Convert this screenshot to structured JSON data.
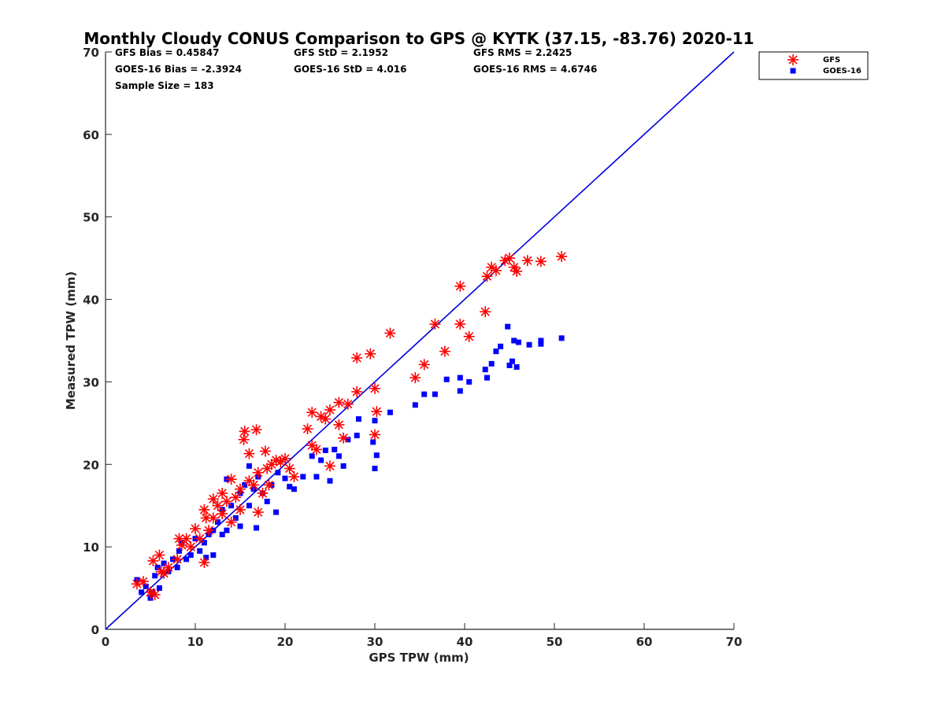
{
  "chart_data": {
    "type": "scatter",
    "title": "Monthly Cloudy CONUS Comparison to GPS @ KYTK (37.15, -83.76) 2020-11",
    "xlabel": "GPS TPW (mm)",
    "ylabel": "Measured TPW (mm)",
    "xlim": [
      0,
      70
    ],
    "ylim": [
      0,
      70
    ],
    "xticks": [
      "0",
      "10",
      "20",
      "30",
      "40",
      "50",
      "60",
      "70"
    ],
    "yticks": [
      "0",
      "10",
      "20",
      "30",
      "40",
      "50",
      "60",
      "70"
    ],
    "reference_line": {
      "x": [
        0,
        70
      ],
      "y": [
        0,
        70
      ],
      "color": "#0000dd"
    },
    "stats": {
      "gfs_bias": "GFS Bias = 0.45847",
      "gfs_std": "GFS StD = 2.1952",
      "gfs_rms": "GFS RMS = 2.2425",
      "goes_bias": "GOES-16 Bias = -2.3924",
      "goes_std": "GOES-16 StD = 4.016",
      "goes_rms": "GOES-16 RMS = 4.6746",
      "sample_size": "Sample Size = 183"
    },
    "legend": {
      "position": "top-right, outside axes",
      "entries": [
        "GFS",
        "GOES-16"
      ]
    },
    "series": [
      {
        "name": "GFS",
        "marker": "asterisk",
        "color": "#ff0000",
        "points": [
          [
            3.5,
            5.5
          ],
          [
            4.2,
            5.8
          ],
          [
            5.0,
            4.5
          ],
          [
            5.5,
            4.2
          ],
          [
            5.3,
            8.3
          ],
          [
            6.0,
            9.0
          ],
          [
            6.2,
            7.0
          ],
          [
            6.5,
            6.8
          ],
          [
            7.0,
            7.5
          ],
          [
            8.0,
            8.5
          ],
          [
            8.2,
            11.0
          ],
          [
            8.5,
            10.2
          ],
          [
            9.0,
            11.0
          ],
          [
            9.5,
            10.0
          ],
          [
            10.0,
            12.2
          ],
          [
            10.5,
            11.0
          ],
          [
            11.0,
            8.1
          ],
          [
            11.2,
            13.5
          ],
          [
            11.0,
            14.5
          ],
          [
            11.5,
            12.0
          ],
          [
            12.0,
            15.8
          ],
          [
            12.0,
            13.5
          ],
          [
            12.5,
            15.0
          ],
          [
            13.0,
            16.5
          ],
          [
            13.0,
            14.0
          ],
          [
            13.5,
            15.5
          ],
          [
            14.0,
            13.0
          ],
          [
            14.0,
            18.2
          ],
          [
            14.5,
            16.0
          ],
          [
            15.0,
            17.0
          ],
          [
            15.0,
            14.5
          ],
          [
            15.5,
            24.0
          ],
          [
            15.4,
            23.0
          ],
          [
            16.0,
            21.3
          ],
          [
            16.0,
            18.0
          ],
          [
            16.5,
            17.5
          ],
          [
            16.8,
            24.2
          ],
          [
            17.0,
            19.0
          ],
          [
            17.0,
            14.2
          ],
          [
            17.5,
            16.5
          ],
          [
            17.8,
            21.6
          ],
          [
            18.0,
            19.5
          ],
          [
            18.2,
            17.5
          ],
          [
            18.5,
            20.0
          ],
          [
            19.0,
            20.5
          ],
          [
            19.5,
            20.3
          ],
          [
            20.0,
            20.7
          ],
          [
            20.5,
            19.5
          ],
          [
            21.0,
            18.5
          ],
          [
            22.5,
            24.3
          ],
          [
            23.0,
            26.3
          ],
          [
            23.0,
            22.3
          ],
          [
            23.5,
            21.8
          ],
          [
            24.0,
            25.8
          ],
          [
            24.5,
            25.5
          ],
          [
            25.0,
            19.8
          ],
          [
            25.0,
            26.6
          ],
          [
            26.0,
            27.5
          ],
          [
            26.0,
            24.8
          ],
          [
            26.5,
            23.2
          ],
          [
            27.0,
            27.3
          ],
          [
            28.0,
            32.9
          ],
          [
            28.0,
            28.8
          ],
          [
            29.5,
            33.4
          ],
          [
            30.0,
            29.2
          ],
          [
            30.0,
            23.6
          ],
          [
            30.2,
            26.4
          ],
          [
            31.7,
            35.9
          ],
          [
            34.5,
            30.5
          ],
          [
            35.5,
            32.1
          ],
          [
            36.7,
            37.0
          ],
          [
            37.8,
            33.7
          ],
          [
            39.5,
            41.6
          ],
          [
            39.5,
            37.0
          ],
          [
            40.5,
            35.5
          ],
          [
            42.3,
            38.5
          ],
          [
            42.5,
            42.8
          ],
          [
            43.0,
            43.9
          ],
          [
            43.5,
            43.5
          ],
          [
            44.5,
            44.7
          ],
          [
            45.0,
            45.0
          ],
          [
            45.5,
            43.9
          ],
          [
            45.8,
            43.4
          ],
          [
            47.0,
            44.7
          ],
          [
            48.5,
            44.6
          ],
          [
            50.8,
            45.2
          ]
        ]
      },
      {
        "name": "GOES-16",
        "marker": "square",
        "color": "#0000ff",
        "points": [
          [
            3.5,
            6.0
          ],
          [
            4.0,
            4.5
          ],
          [
            4.5,
            5.2
          ],
          [
            5.0,
            3.8
          ],
          [
            5.2,
            4.5
          ],
          [
            5.5,
            6.5
          ],
          [
            5.8,
            7.5
          ],
          [
            6.0,
            5.0
          ],
          [
            6.5,
            8.0
          ],
          [
            7.0,
            7.0
          ],
          [
            7.5,
            8.5
          ],
          [
            8.0,
            7.5
          ],
          [
            8.2,
            9.5
          ],
          [
            8.5,
            10.5
          ],
          [
            9.0,
            8.5
          ],
          [
            9.5,
            9.0
          ],
          [
            10.0,
            11.0
          ],
          [
            10.5,
            9.5
          ],
          [
            11.0,
            10.5
          ],
          [
            11.2,
            8.7
          ],
          [
            11.5,
            11.5
          ],
          [
            12.0,
            9.0
          ],
          [
            12.0,
            12.0
          ],
          [
            12.5,
            13.0
          ],
          [
            13.0,
            11.5
          ],
          [
            13.0,
            14.5
          ],
          [
            13.5,
            12.0
          ],
          [
            13.5,
            18.2
          ],
          [
            14.0,
            15.0
          ],
          [
            14.5,
            13.5
          ],
          [
            15.0,
            16.5
          ],
          [
            15.0,
            12.5
          ],
          [
            15.5,
            17.5
          ],
          [
            16.0,
            15.0
          ],
          [
            16.0,
            19.8
          ],
          [
            16.5,
            17.0
          ],
          [
            16.8,
            12.3
          ],
          [
            17.0,
            18.5
          ],
          [
            17.5,
            16.5
          ],
          [
            18.0,
            15.5
          ],
          [
            18.5,
            17.5
          ],
          [
            19.0,
            14.2
          ],
          [
            19.2,
            19.0
          ],
          [
            20.0,
            18.3
          ],
          [
            20.5,
            17.3
          ],
          [
            21.0,
            17.0
          ],
          [
            22.0,
            18.5
          ],
          [
            23.0,
            21.0
          ],
          [
            23.5,
            18.5
          ],
          [
            24.0,
            20.5
          ],
          [
            24.5,
            21.7
          ],
          [
            25.0,
            18.0
          ],
          [
            25.5,
            21.8
          ],
          [
            26.0,
            21.0
          ],
          [
            26.5,
            19.8
          ],
          [
            27.0,
            23.0
          ],
          [
            28.0,
            23.5
          ],
          [
            28.2,
            25.5
          ],
          [
            29.8,
            22.7
          ],
          [
            30.0,
            25.3
          ],
          [
            30.2,
            21.1
          ],
          [
            30.0,
            19.5
          ],
          [
            31.7,
            26.3
          ],
          [
            34.5,
            27.2
          ],
          [
            35.5,
            28.5
          ],
          [
            36.7,
            28.5
          ],
          [
            38.0,
            30.3
          ],
          [
            39.5,
            30.5
          ],
          [
            39.5,
            28.9
          ],
          [
            40.5,
            30.0
          ],
          [
            42.3,
            31.5
          ],
          [
            42.5,
            30.5
          ],
          [
            43.0,
            32.2
          ],
          [
            43.5,
            33.7
          ],
          [
            44.0,
            34.3
          ],
          [
            44.8,
            36.7
          ],
          [
            45.0,
            32.0
          ],
          [
            45.3,
            32.5
          ],
          [
            45.5,
            35.0
          ],
          [
            45.8,
            31.8
          ],
          [
            46.0,
            34.8
          ],
          [
            47.2,
            34.5
          ],
          [
            48.5,
            35.0
          ],
          [
            48.5,
            34.6
          ],
          [
            50.8,
            35.3
          ]
        ]
      }
    ]
  }
}
